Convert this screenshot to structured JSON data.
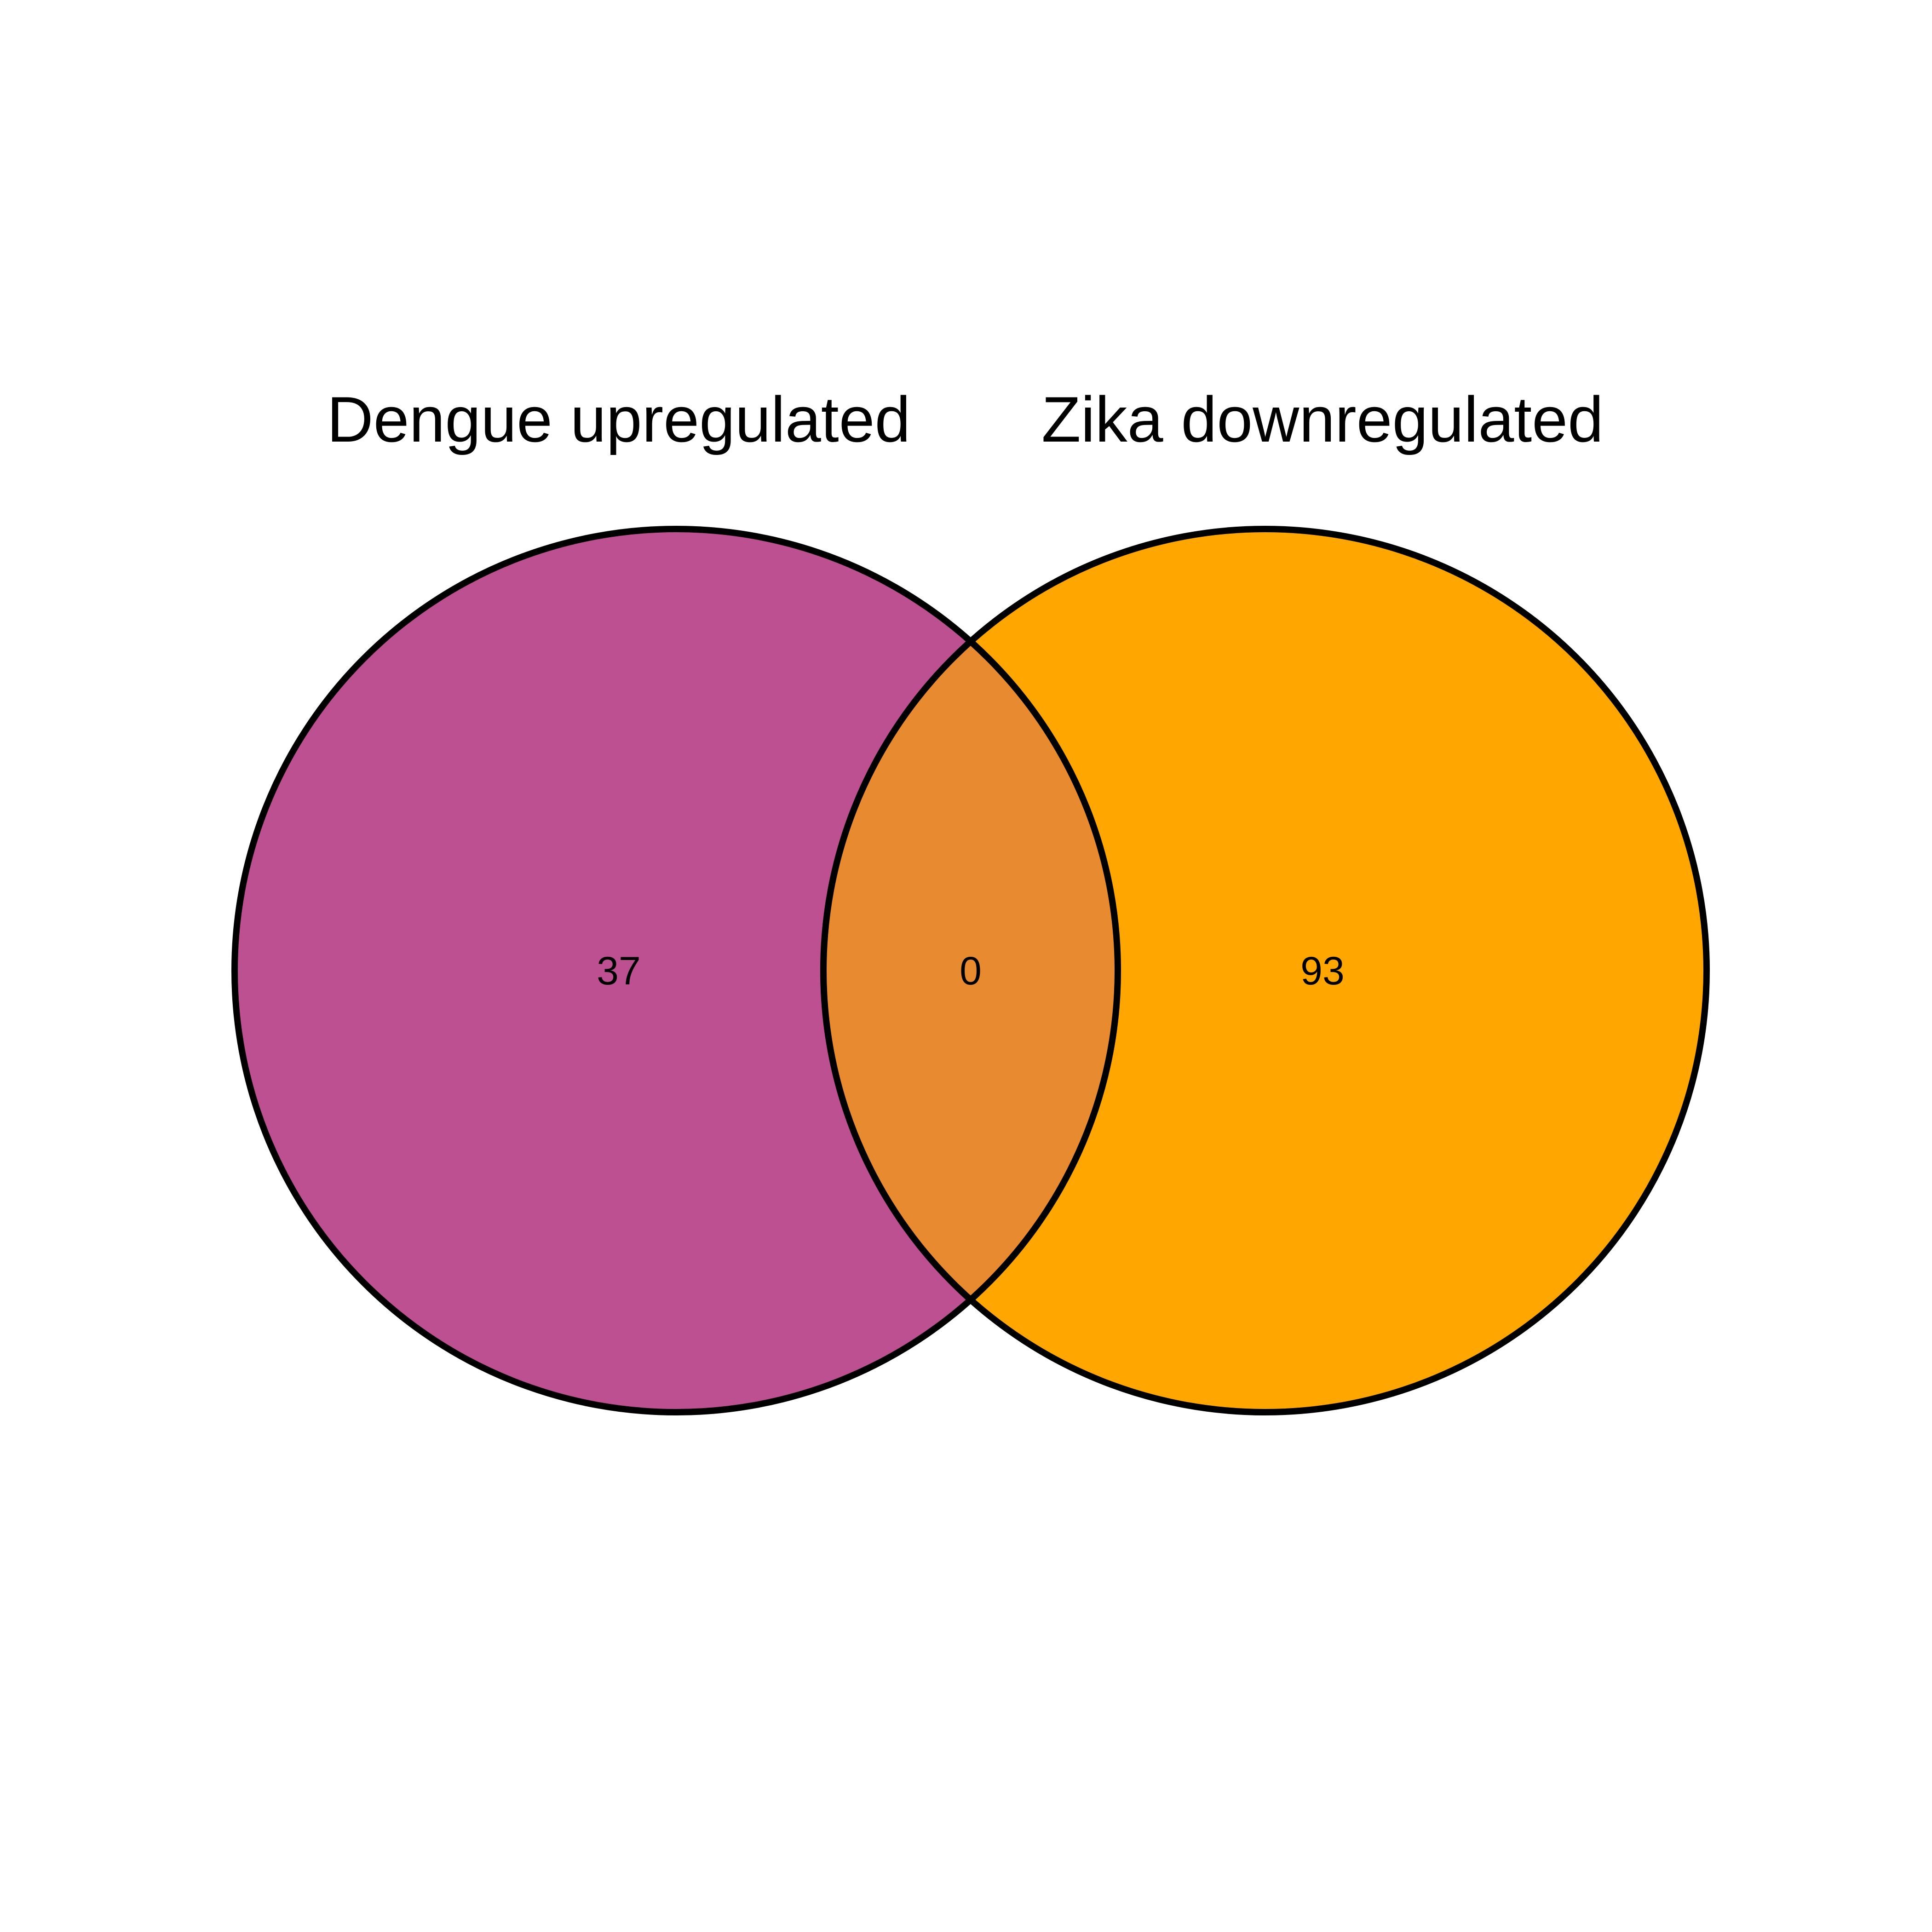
{
  "sets": [
    {
      "name": "Dengue upregulated",
      "color": "#BC5090"
    },
    {
      "name": "Zika downregulated",
      "color": "#FFA600"
    }
  ],
  "regions": {
    "left_only": "37",
    "intersection": "0",
    "right_only": "93"
  },
  "intersection_color": "#E78A30",
  "outline_color": "#000000",
  "background_color": "#FFFFFF"
}
